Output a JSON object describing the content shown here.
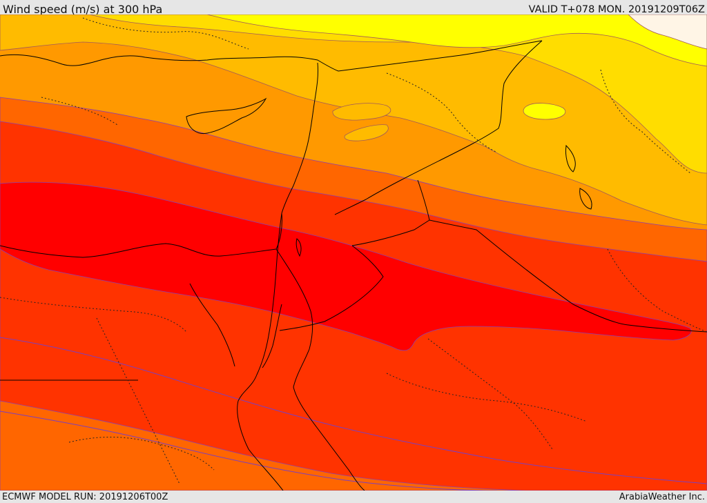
{
  "header": {
    "title": "Wind speed (m/s) at 300 hPa",
    "valid": "VALID T+078 MON. 20191209T06Z"
  },
  "footer": {
    "model_run": "ECMWF MODEL RUN: 20191206T00Z",
    "credit": "ArabiaWeather Inc."
  },
  "colors": {
    "band_pale": "#ffff00",
    "band_yellow": "#ffdd00",
    "band_amber": "#ffbb00",
    "band_orange_light": "#ff9900",
    "band_orange": "#ff6600",
    "band_red_orange": "#ff3300",
    "band_red": "#ff0000",
    "contour_line": "#8a3fb0",
    "coastline": "#000000"
  }
}
